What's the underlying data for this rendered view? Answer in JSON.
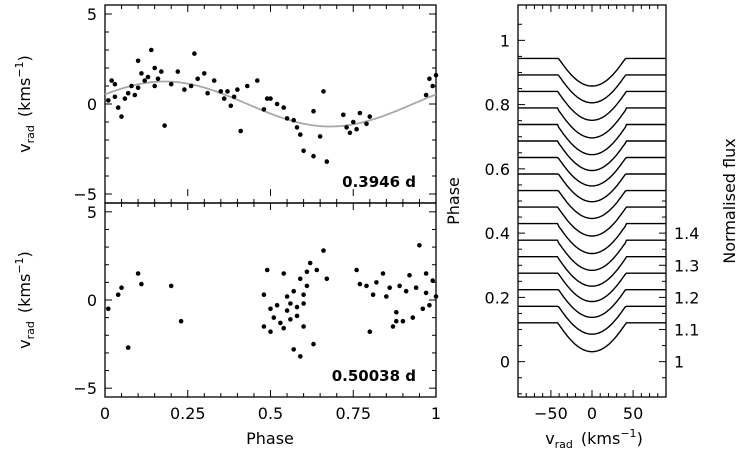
{
  "chart_data": [
    {
      "id": "top",
      "type": "scatter",
      "xlabel": "",
      "ylabel_main": "v",
      "ylabel_sub": "rad",
      "ylabel_unit": "(kms",
      "ylabel_exp": "−1",
      "ylabel_close": ")",
      "xlim": [
        0,
        1
      ],
      "ylim": [
        -5.5,
        5.5
      ],
      "yticks": [
        5,
        0,
        -5
      ],
      "ytick_labels": [
        "5",
        "0",
        "−5"
      ],
      "annotation": "0.3946 d",
      "fit_curve": {
        "amplitude": 1.25,
        "phase_of_max": 0.18
      },
      "points": [
        [
          0.01,
          0.2
        ],
        [
          0.02,
          1.3
        ],
        [
          0.03,
          1.1
        ],
        [
          0.03,
          0.4
        ],
        [
          0.04,
          -0.2
        ],
        [
          0.05,
          -0.7
        ],
        [
          0.06,
          0.3
        ],
        [
          0.07,
          0.6
        ],
        [
          0.08,
          1.0
        ],
        [
          0.09,
          0.5
        ],
        [
          0.1,
          2.4
        ],
        [
          0.1,
          0.9
        ],
        [
          0.11,
          1.7
        ],
        [
          0.12,
          1.3
        ],
        [
          0.13,
          1.5
        ],
        [
          0.14,
          3.0
        ],
        [
          0.15,
          1.0
        ],
        [
          0.15,
          2.0
        ],
        [
          0.16,
          1.4
        ],
        [
          0.17,
          1.8
        ],
        [
          0.18,
          -1.2
        ],
        [
          0.2,
          1.1
        ],
        [
          0.22,
          1.8
        ],
        [
          0.24,
          0.8
        ],
        [
          0.26,
          1.0
        ],
        [
          0.27,
          2.8
        ],
        [
          0.28,
          1.4
        ],
        [
          0.3,
          1.7
        ],
        [
          0.31,
          0.6
        ],
        [
          0.33,
          1.3
        ],
        [
          0.35,
          0.7
        ],
        [
          0.36,
          0.3
        ],
        [
          0.37,
          0.7
        ],
        [
          0.38,
          -0.1
        ],
        [
          0.39,
          0.4
        ],
        [
          0.4,
          0.8
        ],
        [
          0.41,
          -1.5
        ],
        [
          0.43,
          1.0
        ],
        [
          0.46,
          1.3
        ],
        [
          0.48,
          -0.3
        ],
        [
          0.49,
          0.3
        ],
        [
          0.5,
          0.3
        ],
        [
          0.52,
          0.0
        ],
        [
          0.54,
          -0.2
        ],
        [
          0.55,
          -0.8
        ],
        [
          0.57,
          -0.9
        ],
        [
          0.58,
          -1.3
        ],
        [
          0.59,
          -1.7
        ],
        [
          0.6,
          -2.6
        ],
        [
          0.63,
          -2.9
        ],
        [
          0.65,
          -1.8
        ],
        [
          0.67,
          -3.2
        ],
        [
          0.63,
          -0.4
        ],
        [
          0.66,
          0.7
        ],
        [
          0.72,
          -0.6
        ],
        [
          0.73,
          -1.3
        ],
        [
          0.74,
          -1.6
        ],
        [
          0.75,
          -1.0
        ],
        [
          0.76,
          -1.4
        ],
        [
          0.77,
          -0.5
        ],
        [
          0.79,
          -1.1
        ],
        [
          0.8,
          -0.7
        ],
        [
          0.98,
          1.4
        ],
        [
          0.99,
          1.0
        ],
        [
          1.0,
          1.6
        ],
        [
          0.97,
          0.5
        ]
      ]
    },
    {
      "id": "bottom",
      "type": "scatter",
      "xlabel": "Phase",
      "ylabel_main": "v",
      "ylabel_sub": "rad",
      "ylabel_unit": "(kms",
      "ylabel_exp": "−1",
      "ylabel_close": ")",
      "xlim": [
        0,
        1
      ],
      "ylim": [
        -5.5,
        5.5
      ],
      "xticks": [
        0,
        0.25,
        0.5,
        0.75,
        1
      ],
      "xtick_labels": [
        "0",
        "0.25",
        "0.5",
        "0.75",
        "1"
      ],
      "yticks": [
        5,
        0,
        -5
      ],
      "ytick_labels": [
        "5",
        "0",
        "−5"
      ],
      "annotation": "0.50038 d",
      "points": [
        [
          0.01,
          -0.5
        ],
        [
          0.04,
          0.3
        ],
        [
          0.05,
          0.7
        ],
        [
          0.07,
          -2.7
        ],
        [
          0.1,
          1.5
        ],
        [
          0.11,
          0.9
        ],
        [
          0.2,
          0.8
        ],
        [
          0.23,
          -1.2
        ],
        [
          0.48,
          0.3
        ],
        [
          0.48,
          -1.5
        ],
        [
          0.49,
          1.7
        ],
        [
          0.5,
          -1.8
        ],
        [
          0.5,
          -0.5
        ],
        [
          0.51,
          -1.0
        ],
        [
          0.52,
          -0.3
        ],
        [
          0.53,
          -1.3
        ],
        [
          0.54,
          1.5
        ],
        [
          0.54,
          -1.6
        ],
        [
          0.55,
          0.2
        ],
        [
          0.55,
          -0.6
        ],
        [
          0.56,
          -0.2
        ],
        [
          0.56,
          -1.1
        ],
        [
          0.57,
          0.5
        ],
        [
          0.57,
          -2.8
        ],
        [
          0.58,
          -0.4
        ],
        [
          0.58,
          -0.9
        ],
        [
          0.59,
          1.2
        ],
        [
          0.59,
          -3.2
        ],
        [
          0.6,
          0.3
        ],
        [
          0.6,
          -1.5
        ],
        [
          0.6,
          -0.2
        ],
        [
          0.61,
          1.6
        ],
        [
          0.61,
          0.8
        ],
        [
          0.62,
          2.1
        ],
        [
          0.63,
          -2.5
        ],
        [
          0.64,
          1.7
        ],
        [
          0.66,
          2.8
        ],
        [
          0.67,
          1.2
        ],
        [
          0.76,
          1.7
        ],
        [
          0.77,
          0.9
        ],
        [
          0.79,
          0.8
        ],
        [
          0.8,
          -1.8
        ],
        [
          0.81,
          0.3
        ],
        [
          0.82,
          1.0
        ],
        [
          0.84,
          1.5
        ],
        [
          0.85,
          0.2
        ],
        [
          0.86,
          0.7
        ],
        [
          0.87,
          -1.5
        ],
        [
          0.88,
          -0.7
        ],
        [
          0.88,
          -1.2
        ],
        [
          0.89,
          0.8
        ],
        [
          0.9,
          -1.2
        ],
        [
          0.91,
          0.5
        ],
        [
          0.92,
          1.4
        ],
        [
          0.93,
          -1.0
        ],
        [
          0.94,
          0.7
        ],
        [
          0.95,
          3.1
        ],
        [
          0.96,
          -0.5
        ],
        [
          0.97,
          1.5
        ],
        [
          0.97,
          0.4
        ],
        [
          0.98,
          -0.3
        ],
        [
          0.99,
          1.1
        ],
        [
          1.0,
          0.2
        ]
      ]
    },
    {
      "id": "profiles",
      "type": "line",
      "xlabel_main": "v",
      "xlabel_sub": "rad",
      "xlabel_unit": "(kms",
      "xlabel_exp": "−1",
      "xlabel_close": ")",
      "ylabel_left": "Phase",
      "ylabel_right": "Normalised flux",
      "xlim": [
        -90,
        90
      ],
      "xticks": [
        -50,
        0,
        50
      ],
      "xtick_labels": [
        "−50",
        "0",
        "50"
      ],
      "phase_lim": [
        -0.11,
        1.11
      ],
      "phase_ticks": [
        0,
        0.2,
        0.4,
        0.6,
        0.8,
        1
      ],
      "phase_tick_labels": [
        "0",
        "0.2",
        "0.4",
        "0.6",
        "0.8",
        "1"
      ],
      "flux_ticks": [
        1,
        1.1,
        1.2,
        1.3,
        1.4
      ],
      "flux_tick_labels": [
        "1",
        "1.1",
        "1.2",
        "1.3",
        "1.4"
      ],
      "profile_offsets": [
        0.02,
        0.0714,
        0.1229,
        0.1743,
        0.2257,
        0.2771,
        0.3286,
        0.38,
        0.4314,
        0.4829,
        0.5343,
        0.5857,
        0.6371,
        0.6886,
        0.74,
        0.7914,
        0.8429
      ],
      "profile_depth": 0.09,
      "profile_half_width_kms": 42
    }
  ]
}
